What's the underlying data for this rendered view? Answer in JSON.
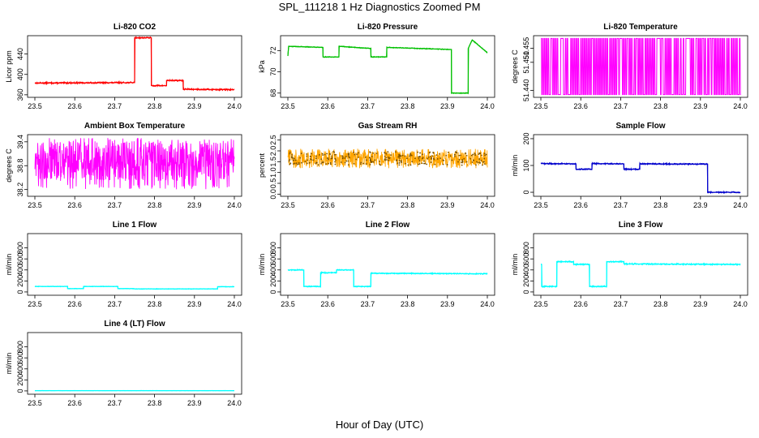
{
  "figure": {
    "title": "SPL_111218  1 Hz Diagnostics Zoomed PM",
    "xlabel": "Hour of Day (UTC)"
  },
  "chart_data": [
    {
      "type": "line",
      "title": "Li-820 CO2",
      "ylabel": "Licor ppm",
      "color": "#ff0000",
      "xlim": [
        23.5,
        24.0
      ],
      "ylim": [
        355,
        476
      ],
      "yticks": [
        "360",
        "400",
        "440"
      ],
      "ytick_values": [
        360,
        400,
        440
      ],
      "xticks": [
        "23.5",
        "23.6",
        "23.7",
        "23.8",
        "23.9",
        "24.0"
      ],
      "noise": 1.5,
      "series": [
        {
          "x": [
            23.5,
            23.75,
            23.75,
            23.792,
            23.792,
            23.83,
            23.83,
            23.872,
            23.872,
            24.0
          ],
          "y": [
            383,
            384,
            472,
            472,
            378,
            378,
            388,
            388,
            371,
            370
          ]
        }
      ]
    },
    {
      "type": "line",
      "title": "Li-820 Pressure",
      "ylabel": "kPa",
      "color": "#00c000",
      "xlim": [
        23.5,
        24.0
      ],
      "ylim": [
        67.6,
        73.4
      ],
      "yticks": [
        "68",
        "70",
        "72"
      ],
      "ytick_values": [
        68,
        70,
        72
      ],
      "xticks": [
        "23.5",
        "23.6",
        "23.7",
        "23.8",
        "23.9",
        "24.0"
      ],
      "noise": 0.04,
      "series": [
        {
          "x": [
            23.5,
            23.502,
            23.588,
            23.588,
            23.628,
            23.628,
            23.708,
            23.708,
            23.748,
            23.748,
            23.91,
            23.91,
            23.952,
            23.952,
            23.962,
            24.0
          ],
          "y": [
            71.5,
            72.4,
            72.3,
            71.4,
            71.4,
            72.4,
            72.2,
            71.4,
            71.4,
            72.3,
            72.1,
            68.0,
            68.0,
            72.2,
            73.0,
            71.8
          ]
        }
      ]
    },
    {
      "type": "line",
      "title": "Li-820 Temperature",
      "ylabel": "degrees C",
      "color": "#ff00ff",
      "xlim": [
        23.5,
        24.0
      ],
      "ylim": [
        51.4375,
        51.4595
      ],
      "yticks": [
        "51.440",
        "51.450",
        "51.455"
      ],
      "ytick_values": [
        51.44,
        51.45,
        51.455
      ],
      "xticks": [
        "23.5",
        "23.6",
        "23.7",
        "23.8",
        "23.9",
        "24.0"
      ],
      "pattern": "binary",
      "levels": [
        51.4385,
        51.4585
      ]
    },
    {
      "type": "line",
      "title": "Ambient Box Temperature",
      "ylabel": "degrees C",
      "color": "#ff00ff",
      "xlim": [
        23.5,
        24.0
      ],
      "ylim": [
        38.03,
        39.58
      ],
      "yticks": [
        "38.2",
        "38.8",
        "39.4"
      ],
      "ytick_values": [
        38.2,
        38.8,
        39.4
      ],
      "xticks": [
        "23.5",
        "23.6",
        "23.7",
        "23.8",
        "23.9",
        "24.0"
      ],
      "pattern": "band",
      "band": [
        38.2,
        39.5
      ],
      "center": 38.9
    },
    {
      "type": "line",
      "title": "Gas Stream RH",
      "ylabel": "percent",
      "color": "#ffa500",
      "xlim": [
        23.5,
        24.0
      ],
      "ylim": [
        -0.1,
        2.75
      ],
      "yticks": [
        "0.0",
        "0.5",
        "1.0",
        "1.5",
        "2.0",
        "2.5"
      ],
      "ytick_values": [
        0,
        0.5,
        1.0,
        1.5,
        2.0,
        2.5
      ],
      "xticks": [
        "23.5",
        "23.6",
        "23.7",
        "23.8",
        "23.9",
        "24.0"
      ],
      "pattern": "band",
      "band": [
        1.2,
        2.1
      ],
      "center": 1.65,
      "markers": true
    },
    {
      "type": "line",
      "title": "Sample Flow",
      "ylabel": "ml/min",
      "color": "#0000cc",
      "xlim": [
        23.5,
        24.0
      ],
      "ylim": [
        -15,
        215
      ],
      "yticks": [
        "0",
        "100",
        "200"
      ],
      "ytick_values": [
        0,
        100,
        200
      ],
      "xticks": [
        "23.5",
        "23.6",
        "23.7",
        "23.8",
        "23.9",
        "24.0"
      ],
      "noise": 2.5,
      "series": [
        {
          "x": [
            23.5,
            23.588,
            23.588,
            23.628,
            23.628,
            23.708,
            23.708,
            23.748,
            23.748,
            23.918,
            23.918,
            24.0
          ],
          "y": [
            107,
            106,
            86,
            86,
            107,
            106,
            86,
            86,
            106,
            105,
            0,
            0
          ]
        }
      ]
    },
    {
      "type": "line",
      "title": "Line 1 Flow",
      "ylabel": "ml/min",
      "color": "#00ffff",
      "xlim": [
        23.5,
        24.0
      ],
      "ylim": [
        -60,
        1060
      ],
      "yticks": [
        "0",
        "200",
        "400",
        "600",
        "800"
      ],
      "ytick_values": [
        0,
        200,
        400,
        600,
        800
      ],
      "xticks": [
        "23.5",
        "23.6",
        "23.7",
        "23.8",
        "23.9",
        "24.0"
      ],
      "noise": 5,
      "series": [
        {
          "x": [
            23.5,
            23.582,
            23.582,
            23.622,
            23.622,
            23.708,
            23.708,
            23.748,
            23.748,
            23.958,
            23.958,
            24.0
          ],
          "y": [
            100,
            100,
            60,
            60,
            100,
            100,
            60,
            60,
            55,
            55,
            95,
            95
          ]
        }
      ]
    },
    {
      "type": "line",
      "title": "Line 2 Flow",
      "ylabel": "ml/min",
      "color": "#00ffff",
      "xlim": [
        23.5,
        24.0
      ],
      "ylim": [
        -60,
        1060
      ],
      "yticks": [
        "0",
        "200",
        "400",
        "600",
        "800"
      ],
      "ytick_values": [
        0,
        200,
        400,
        600,
        800
      ],
      "xticks": [
        "23.5",
        "23.6",
        "23.7",
        "23.8",
        "23.9",
        "24.0"
      ],
      "noise": 10,
      "series": [
        {
          "x": [
            23.5,
            23.54,
            23.54,
            23.582,
            23.582,
            23.622,
            23.622,
            23.665,
            23.665,
            23.708,
            23.708,
            24.0
          ],
          "y": [
            400,
            400,
            100,
            100,
            350,
            350,
            400,
            400,
            100,
            100,
            340,
            330
          ]
        }
      ]
    },
    {
      "type": "line",
      "title": "Line 3 Flow",
      "ylabel": "ml/min",
      "color": "#00ffff",
      "xlim": [
        23.5,
        24.0
      ],
      "ylim": [
        -60,
        1060
      ],
      "yticks": [
        "0",
        "200",
        "400",
        "600",
        "800"
      ],
      "ytick_values": [
        0,
        200,
        400,
        600,
        800
      ],
      "xticks": [
        "23.5",
        "23.6",
        "23.7",
        "23.8",
        "23.9",
        "24.0"
      ],
      "noise": 12,
      "series": [
        {
          "x": [
            23.5,
            23.502,
            23.502,
            23.54,
            23.54,
            23.582,
            23.582,
            23.622,
            23.622,
            23.665,
            23.665,
            23.708,
            23.708,
            24.0
          ],
          "y": [
            500,
            500,
            100,
            100,
            550,
            550,
            500,
            500,
            100,
            100,
            550,
            550,
            510,
            500
          ]
        }
      ]
    },
    {
      "type": "line",
      "title": "Line 4 (LT) Flow",
      "ylabel": "ml/min",
      "color": "#00ffff",
      "xlim": [
        23.5,
        24.0
      ],
      "ylim": [
        -60,
        1060
      ],
      "yticks": [
        "0",
        "200",
        "400",
        "600",
        "800"
      ],
      "ytick_values": [
        0,
        200,
        400,
        600,
        800
      ],
      "xticks": [
        "23.5",
        "23.6",
        "23.7",
        "23.8",
        "23.9",
        "24.0"
      ],
      "noise": 2,
      "series": [
        {
          "x": [
            23.5,
            24.0
          ],
          "y": [
            5,
            5
          ]
        }
      ]
    }
  ]
}
